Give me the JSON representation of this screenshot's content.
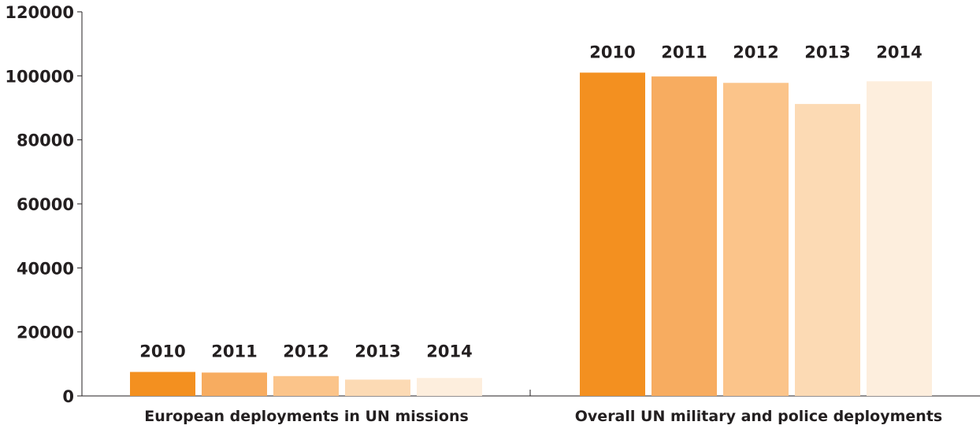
{
  "chart_data": {
    "type": "bar",
    "categories": [
      "European deployments in UN missions",
      "Overall UN military and police deployments"
    ],
    "series": [
      {
        "name": "2010",
        "values": [
          7500,
          101000
        ],
        "color": "#f39020"
      },
      {
        "name": "2011",
        "values": [
          7300,
          99800
        ],
        "color": "#f7ac60"
      },
      {
        "name": "2012",
        "values": [
          6200,
          97800
        ],
        "color": "#fbc48a"
      },
      {
        "name": "2013",
        "values": [
          5100,
          91200
        ],
        "color": "#fcdab4"
      },
      {
        "name": "2014",
        "values": [
          5600,
          98300
        ],
        "color": "#fdeedd"
      }
    ],
    "y_ticks": [
      "0",
      "20000",
      "40000",
      "60000",
      "80000",
      "100000",
      "120000"
    ],
    "ylim": [
      0,
      120000
    ],
    "grid": false,
    "legend": "year labels above each bar group"
  }
}
